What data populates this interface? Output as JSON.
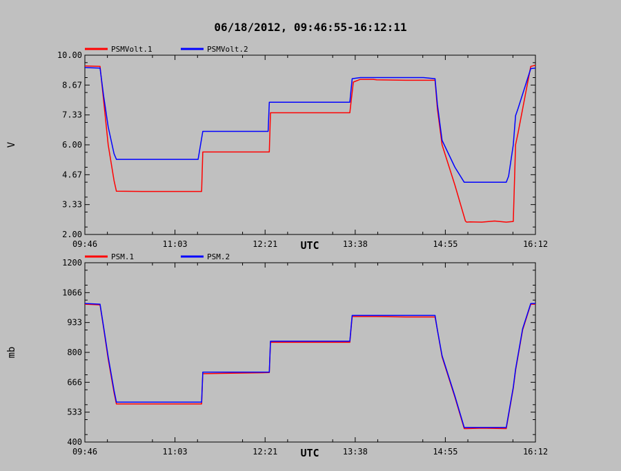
{
  "chart_title": "06/18/2012, 09:46:55-16:12:11",
  "chart_data": [
    {
      "type": "line",
      "ylabel": "V",
      "xlabel": "UTC",
      "ylim": [
        2.0,
        10.0
      ],
      "yticks": [
        "2.00",
        "3.33",
        "4.67",
        "6.00",
        "7.33",
        "8.67",
        "10.00"
      ],
      "xticks": [
        "09:46",
        "11:03",
        "12:21",
        "13:38",
        "14:55",
        "16:12"
      ],
      "xlim_minutes": [
        0,
        386
      ],
      "legend_position": "top-left",
      "series": [
        {
          "name": "PSMVolt.1",
          "color": "#ff0000",
          "x_minutes": [
            0,
            13,
            16,
            20,
            25,
            27,
            49,
            60,
            100,
            101,
            158,
            159,
            227,
            230,
            236,
            247,
            250,
            275,
            285,
            300,
            302,
            306,
            317,
            326,
            327,
            330,
            340,
            351,
            361,
            367,
            369,
            371,
            382,
            386
          ],
          "y": [
            9.52,
            9.5,
            8.0,
            6.0,
            4.4,
            3.93,
            3.92,
            3.92,
            3.92,
            5.68,
            5.68,
            7.43,
            7.43,
            8.8,
            8.92,
            8.92,
            8.9,
            8.88,
            8.88,
            8.88,
            7.6,
            6.0,
            4.2,
            2.6,
            2.55,
            2.56,
            2.55,
            2.6,
            2.55,
            2.58,
            6.0,
            6.5,
            9.5,
            9.55
          ]
        },
        {
          "name": "PSMVolt.2",
          "color": "#0000ff",
          "x_minutes": [
            0,
            13,
            16,
            20,
            25,
            27,
            97,
            101,
            157,
            158,
            162,
            227,
            229,
            236,
            250,
            275,
            290,
            300,
            302,
            306,
            317,
            325,
            340,
            361,
            363,
            367,
            369,
            371,
            382,
            386
          ],
          "y": [
            9.45,
            9.42,
            8.2,
            6.8,
            5.6,
            5.35,
            5.35,
            6.6,
            6.6,
            7.9,
            7.9,
            7.9,
            8.95,
            9.0,
            9.0,
            9.0,
            9.0,
            8.95,
            7.8,
            6.2,
            5.0,
            4.33,
            4.33,
            4.33,
            4.6,
            6.0,
            7.3,
            7.6,
            9.4,
            9.42
          ]
        }
      ]
    },
    {
      "type": "line",
      "ylabel": "mb",
      "xlabel": "UTC",
      "ylim": [
        400,
        1200
      ],
      "yticks": [
        "400",
        "533",
        "666",
        "800",
        "933",
        "1066",
        "1200"
      ],
      "xticks": [
        "09:46",
        "11:03",
        "12:21",
        "13:38",
        "14:55",
        "16:12"
      ],
      "xlim_minutes": [
        0,
        386
      ],
      "legend_position": "top-left",
      "series": [
        {
          "name": "PSM.1",
          "color": "#ff0000",
          "x_minutes": [
            0,
            13,
            16,
            20,
            25,
            27,
            49,
            60,
            100,
            101,
            158,
            159,
            227,
            229,
            250,
            275,
            287,
            300,
            302,
            306,
            317,
            325,
            327,
            340,
            361,
            363,
            367,
            369,
            371,
            375,
            382,
            386
          ],
          "y": [
            1015,
            1012,
            910,
            770,
            620,
            570,
            570,
            570,
            570,
            705,
            710,
            845,
            845,
            960,
            960,
            958,
            958,
            958,
            900,
            780,
            600,
            460,
            460,
            462,
            460,
            520,
            640,
            720,
            780,
            900,
            1015,
            1015
          ],
          "comment": ""
        },
        {
          "name": "PSM.2",
          "color": "#0000ff",
          "x_minutes": [
            0,
            13,
            16,
            20,
            25,
            27,
            60,
            100,
            101,
            158,
            159,
            227,
            229,
            250,
            290,
            300,
            302,
            306,
            317,
            325,
            340,
            361,
            363,
            367,
            369,
            371,
            375,
            382,
            386
          ],
          "y": [
            1018,
            1015,
            915,
            780,
            630,
            578,
            578,
            578,
            712,
            712,
            850,
            850,
            965,
            965,
            965,
            965,
            900,
            785,
            605,
            465,
            465,
            465,
            525,
            645,
            725,
            785,
            905,
            1018,
            1018
          ]
        }
      ]
    }
  ]
}
